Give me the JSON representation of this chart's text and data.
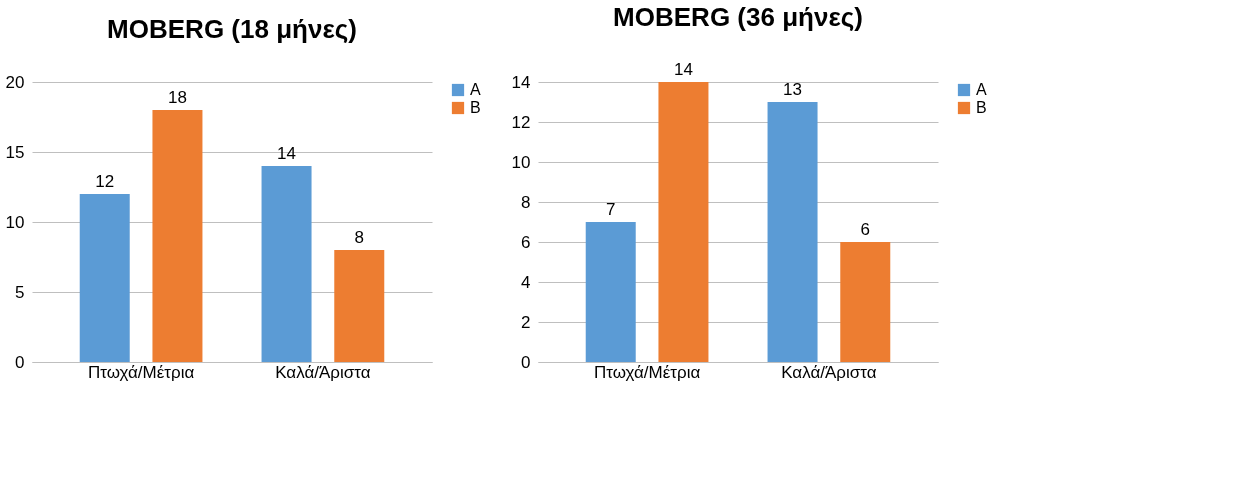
{
  "chart_data": [
    {
      "type": "bar",
      "title": "MOBERG (18 μήνες)",
      "categories": [
        "Πτωχά/Μέτρια",
        "Καλά/Άριστα"
      ],
      "series": [
        {
          "name": "A",
          "color": "#5b9bd5",
          "values": [
            12,
            14
          ]
        },
        {
          "name": "B",
          "color": "#ed7d31",
          "values": [
            18,
            8
          ]
        }
      ],
      "ylim": [
        0,
        20
      ],
      "yticks": [
        0,
        5,
        10,
        15,
        20
      ],
      "grid": "y",
      "legend": "right",
      "data_labels": true
    },
    {
      "type": "bar",
      "title": "MOBERG (36 μήνες)",
      "categories": [
        "Πτωχά/Μέτρια",
        "Καλά/Άριστα"
      ],
      "series": [
        {
          "name": "A",
          "color": "#5b9bd5",
          "values": [
            7,
            13
          ]
        },
        {
          "name": "B",
          "color": "#ed7d31",
          "values": [
            14,
            6
          ]
        }
      ],
      "ylim": [
        0,
        14
      ],
      "yticks": [
        0,
        2,
        4,
        6,
        8,
        10,
        12,
        14
      ],
      "grid": "y",
      "legend": "right",
      "data_labels": true
    }
  ]
}
